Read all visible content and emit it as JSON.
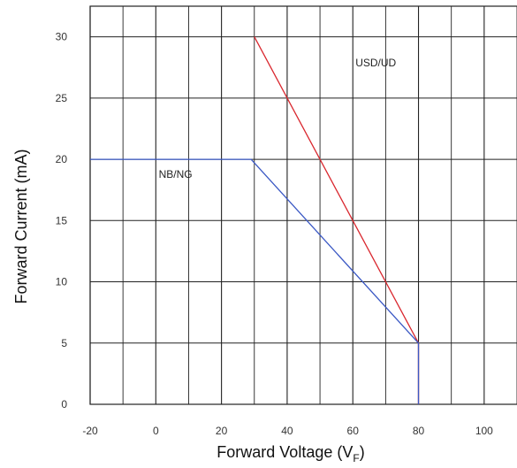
{
  "chart_data": {
    "type": "line",
    "xlabel_main": "Forward Voltage (V",
    "xlabel_sub": "F",
    "xlabel_close": ")",
    "ylabel": "Forward Current (mA)",
    "xlim": [
      -20,
      110
    ],
    "ylim": [
      0,
      32.5
    ],
    "x_ticks": [
      -20,
      0,
      20,
      40,
      60,
      80,
      100
    ],
    "y_ticks": [
      0,
      5,
      10,
      15,
      20,
      25,
      30
    ],
    "grid": true,
    "series": [
      {
        "name": "USD/UD",
        "color": "#d9272e",
        "points": [
          [
            30,
            30
          ],
          [
            80,
            5
          ],
          [
            80,
            0
          ]
        ]
      },
      {
        "name": "NB/NG",
        "color": "#3a58c4",
        "points": [
          [
            -20,
            20
          ],
          [
            29,
            20
          ],
          [
            80,
            5
          ],
          [
            80,
            0
          ]
        ]
      }
    ],
    "annotations": [
      {
        "text": "USD/UD",
        "x": 67,
        "y": 27.6
      },
      {
        "text": "NB/NG",
        "x": 6,
        "y": 18.5
      }
    ]
  }
}
